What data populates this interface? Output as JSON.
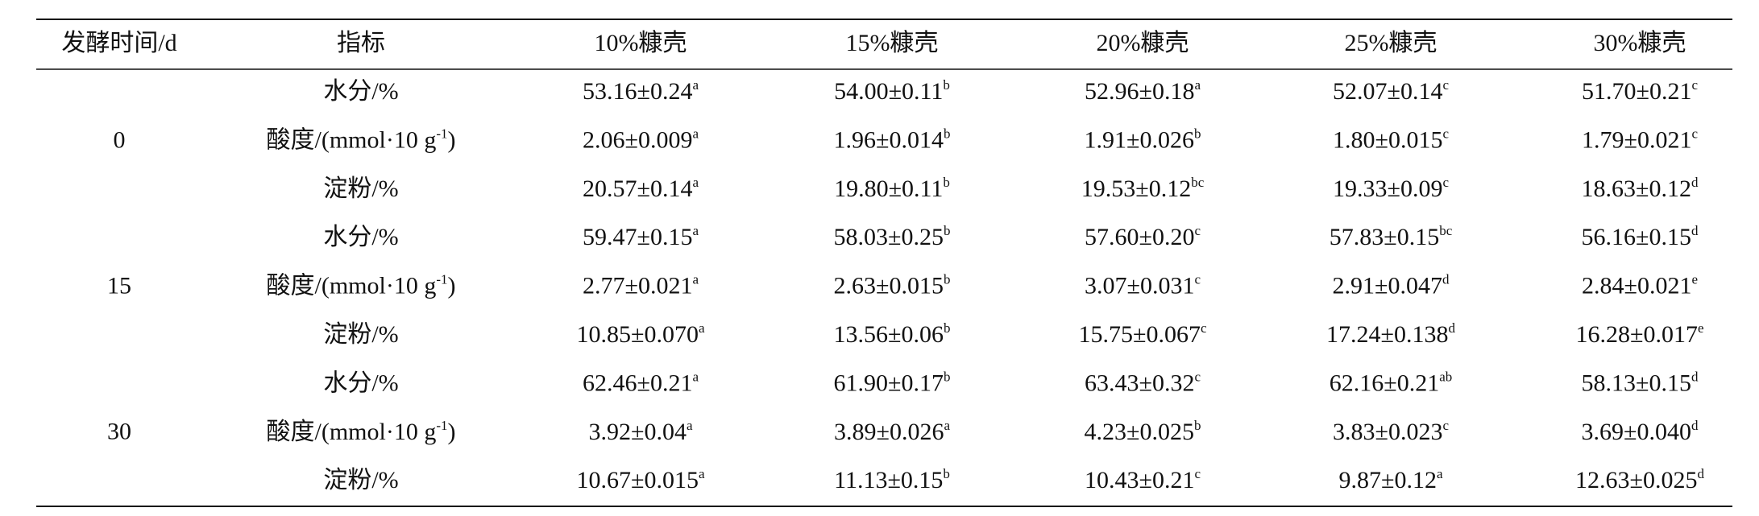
{
  "table": {
    "header": [
      "发酵时间/d",
      "指标",
      "10%糠壳",
      "15%糠壳",
      "20%糠壳",
      "25%糠壳",
      "30%糠壳"
    ],
    "groups": [
      {
        "time": "0",
        "rows": [
          {
            "indicator": {
              "text": "水分/%"
            },
            "cells": [
              {
                "value": "53.16±0.24",
                "sup": "a"
              },
              {
                "value": "54.00±0.11",
                "sup": "b"
              },
              {
                "value": "52.96±0.18",
                "sup": "a"
              },
              {
                "value": "52.07±0.14",
                "sup": "c"
              },
              {
                "value": "51.70±0.21",
                "sup": "c"
              }
            ]
          },
          {
            "indicator": {
              "text": "酸度/(mmol·10 g",
              "sup": "-1",
              "tail": ")"
            },
            "cells": [
              {
                "value": "2.06±0.009",
                "sup": "a"
              },
              {
                "value": "1.96±0.014",
                "sup": "b"
              },
              {
                "value": "1.91±0.026",
                "sup": "b"
              },
              {
                "value": "1.80±0.015",
                "sup": "c"
              },
              {
                "value": "1.79±0.021",
                "sup": "c"
              }
            ]
          },
          {
            "indicator": {
              "text": "淀粉/%"
            },
            "cells": [
              {
                "value": "20.57±0.14",
                "sup": "a"
              },
              {
                "value": "19.80±0.11",
                "sup": "b"
              },
              {
                "value": "19.53±0.12",
                "sup": "bc"
              },
              {
                "value": "19.33±0.09",
                "sup": "c"
              },
              {
                "value": "18.63±0.12",
                "sup": "d"
              }
            ]
          }
        ]
      },
      {
        "time": "15",
        "rows": [
          {
            "indicator": {
              "text": "水分/%"
            },
            "cells": [
              {
                "value": "59.47±0.15",
                "sup": "a"
              },
              {
                "value": "58.03±0.25",
                "sup": "b"
              },
              {
                "value": "57.60±0.20",
                "sup": "c"
              },
              {
                "value": "57.83±0.15",
                "sup": "bc"
              },
              {
                "value": "56.16±0.15",
                "sup": "d"
              }
            ]
          },
          {
            "indicator": {
              "text": "酸度/(mmol·10 g",
              "sup": "-1",
              "tail": ")"
            },
            "cells": [
              {
                "value": "2.77±0.021",
                "sup": "a"
              },
              {
                "value": "2.63±0.015",
                "sup": "b"
              },
              {
                "value": "3.07±0.031",
                "sup": "c"
              },
              {
                "value": "2.91±0.047",
                "sup": "d"
              },
              {
                "value": "2.84±0.021",
                "sup": "e"
              }
            ]
          },
          {
            "indicator": {
              "text": "淀粉/%"
            },
            "cells": [
              {
                "value": "10.85±0.070",
                "sup": "a"
              },
              {
                "value": "13.56±0.06",
                "sup": "b"
              },
              {
                "value": "15.75±0.067",
                "sup": "c"
              },
              {
                "value": "17.24±0.138",
                "sup": "d"
              },
              {
                "value": "16.28±0.017",
                "sup": "e"
              }
            ]
          }
        ]
      },
      {
        "time": "30",
        "rows": [
          {
            "indicator": {
              "text": "水分/%"
            },
            "cells": [
              {
                "value": "62.46±0.21",
                "sup": "a"
              },
              {
                "value": "61.90±0.17",
                "sup": "b"
              },
              {
                "value": "63.43±0.32",
                "sup": "c"
              },
              {
                "value": "62.16±0.21",
                "sup": "ab"
              },
              {
                "value": "58.13±0.15",
                "sup": "d"
              }
            ]
          },
          {
            "indicator": {
              "text": "酸度/(mmol·10 g",
              "sup": "-1",
              "tail": ")"
            },
            "cells": [
              {
                "value": "3.92±0.04",
                "sup": "a"
              },
              {
                "value": "3.89±0.026",
                "sup": "a"
              },
              {
                "value": "4.23±0.025",
                "sup": "b"
              },
              {
                "value": "3.83±0.023",
                "sup": "c"
              },
              {
                "value": "3.69±0.040",
                "sup": "d"
              }
            ]
          },
          {
            "indicator": {
              "text": "淀粉/%"
            },
            "cells": [
              {
                "value": "10.67±0.015",
                "sup": "a"
              },
              {
                "value": "11.13±0.15",
                "sup": "b"
              },
              {
                "value": "10.43±0.21",
                "sup": "c"
              },
              {
                "value": "9.87±0.12",
                "sup": "a"
              },
              {
                "value": "12.63±0.025",
                "sup": "d"
              }
            ]
          }
        ]
      }
    ]
  }
}
